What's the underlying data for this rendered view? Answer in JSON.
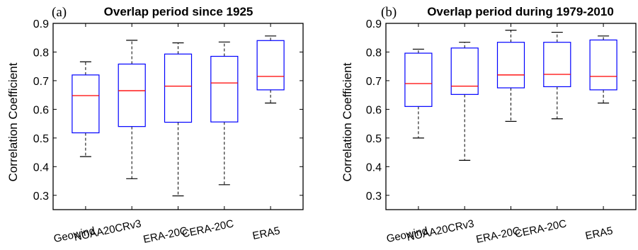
{
  "chart_data": [
    {
      "type": "box",
      "panel_label": "(a)",
      "title": "Overlap period since 1925",
      "ylabel": "Correlation Coefficient",
      "ylim": [
        0.25,
        0.9
      ],
      "yticks": [
        0.3,
        0.4,
        0.5,
        0.6,
        0.7,
        0.8,
        0.9
      ],
      "categories": [
        "Geowind",
        "NOAA20CRv3",
        "ERA-20C",
        "CERA-20C",
        "ERA5"
      ],
      "boxes": [
        {
          "whisker_low": 0.435,
          "q1": 0.518,
          "median": 0.648,
          "q3": 0.72,
          "whisker_high": 0.766
        },
        {
          "whisker_low": 0.358,
          "q1": 0.54,
          "median": 0.665,
          "q3": 0.758,
          "whisker_high": 0.841
        },
        {
          "whisker_low": 0.298,
          "q1": 0.555,
          "median": 0.681,
          "q3": 0.793,
          "whisker_high": 0.832
        },
        {
          "whisker_low": 0.337,
          "q1": 0.556,
          "median": 0.692,
          "q3": 0.785,
          "whisker_high": 0.835
        },
        {
          "whisker_low": 0.622,
          "q1": 0.668,
          "median": 0.715,
          "q3": 0.84,
          "whisker_high": 0.856
        }
      ],
      "colors": {
        "box": "#0000ff",
        "median": "#ff0000",
        "whisker": "#000000"
      }
    },
    {
      "type": "box",
      "panel_label": "(b)",
      "title": "Overlap period during 1979-2010",
      "ylabel": "Correlation Coefficient",
      "ylim": [
        0.25,
        0.9
      ],
      "yticks": [
        0.3,
        0.4,
        0.5,
        0.6,
        0.7,
        0.8,
        0.9
      ],
      "categories": [
        "Geowind",
        "NOAA20CRv3",
        "ERA-20C",
        "CERA-20C",
        "ERA5"
      ],
      "boxes": [
        {
          "whisker_low": 0.5,
          "q1": 0.61,
          "median": 0.69,
          "q3": 0.796,
          "whisker_high": 0.81
        },
        {
          "whisker_low": 0.422,
          "q1": 0.652,
          "median": 0.681,
          "q3": 0.814,
          "whisker_high": 0.834
        },
        {
          "whisker_low": 0.558,
          "q1": 0.675,
          "median": 0.72,
          "q3": 0.834,
          "whisker_high": 0.876
        },
        {
          "whisker_low": 0.567,
          "q1": 0.679,
          "median": 0.722,
          "q3": 0.834,
          "whisker_high": 0.869
        },
        {
          "whisker_low": 0.622,
          "q1": 0.668,
          "median": 0.715,
          "q3": 0.842,
          "whisker_high": 0.856
        }
      ],
      "colors": {
        "box": "#0000ff",
        "median": "#ff0000",
        "whisker": "#000000"
      }
    }
  ]
}
